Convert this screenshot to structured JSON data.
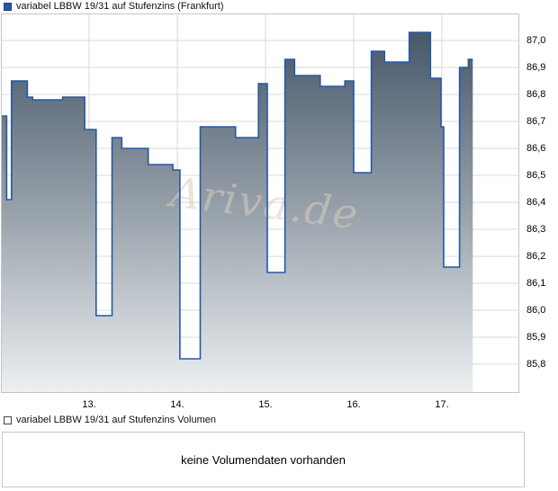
{
  "price_chart": {
    "legend": "variabel LBBW 19/31 auf Stufenzins (Frankfurt)",
    "marker_fill": "#2a55a8",
    "marker_border": "#16407e"
  },
  "volume_chart": {
    "legend": "variabel LBBW 19/31 auf Stufenzins Volumen",
    "marker_fill": "#ffffff",
    "marker_border": "#444444",
    "message": "keine Volumendaten vorhanden"
  },
  "watermark": "Ariva.de",
  "chart_data": {
    "type": "area",
    "step": true,
    "title": "variabel LBBW 19/31 auf Stufenzins (Frankfurt)",
    "xlabel": "",
    "ylabel": "",
    "x_unit": "day of month",
    "x_range_days": [
      12.0,
      17.35
    ],
    "ylim": [
      85.7,
      87.1
    ],
    "grid": true,
    "legend_position": "top-left",
    "y_axis_side": "right",
    "x_ticks": [
      {
        "day": 13,
        "label": "13."
      },
      {
        "day": 14,
        "label": "14."
      },
      {
        "day": 15,
        "label": "15."
      },
      {
        "day": 16,
        "label": "16."
      },
      {
        "day": 17,
        "label": "17."
      }
    ],
    "y_ticks": [
      {
        "value": 87.0,
        "label": "87,0"
      },
      {
        "value": 86.9,
        "label": "86,9"
      },
      {
        "value": 86.8,
        "label": "86,8"
      },
      {
        "value": 86.7,
        "label": "86,7"
      },
      {
        "value": 86.6,
        "label": "86,6"
      },
      {
        "value": 86.5,
        "label": "86,5"
      },
      {
        "value": 86.4,
        "label": "86,4"
      },
      {
        "value": 86.3,
        "label": "86,3"
      },
      {
        "value": 86.2,
        "label": "86,2"
      },
      {
        "value": 86.1,
        "label": "86,1"
      },
      {
        "value": 86.0,
        "label": "86,0"
      },
      {
        "value": 85.9,
        "label": "85,9"
      },
      {
        "value": 85.8,
        "label": "85,8"
      }
    ],
    "series": [
      {
        "name": "variabel LBBW 19/31 auf Stufenzins (Frankfurt)",
        "points": [
          [
            12.0,
            86.72
          ],
          [
            12.065,
            86.41
          ],
          [
            12.12,
            86.85
          ],
          [
            12.3,
            86.79
          ],
          [
            12.36,
            86.78
          ],
          [
            12.7,
            86.79
          ],
          [
            12.95,
            86.67
          ],
          [
            13.08,
            85.98
          ],
          [
            13.26,
            86.64
          ],
          [
            13.37,
            86.6
          ],
          [
            13.67,
            86.54
          ],
          [
            13.95,
            86.52
          ],
          [
            14.03,
            85.82
          ],
          [
            14.26,
            86.68
          ],
          [
            14.66,
            86.64
          ],
          [
            14.92,
            86.84
          ],
          [
            15.02,
            86.14
          ],
          [
            15.22,
            86.93
          ],
          [
            15.33,
            86.87
          ],
          [
            15.62,
            86.83
          ],
          [
            15.9,
            86.85
          ],
          [
            16.0,
            86.51
          ],
          [
            16.2,
            86.96
          ],
          [
            16.35,
            86.92
          ],
          [
            16.63,
            87.03
          ],
          [
            16.87,
            86.86
          ],
          [
            16.99,
            86.68
          ],
          [
            17.02,
            86.16
          ],
          [
            17.2,
            86.9
          ],
          [
            17.3,
            86.93
          ]
        ]
      }
    ],
    "end_day": 17.35,
    "last_price": 86.93,
    "colors": {
      "line": "#2558a6",
      "fill_top": "#47586a",
      "fill_mid": "#98a2ab",
      "fill_bottom": "#eef0f2",
      "grid": "#d8d8d8",
      "frame": "#c4c4c4",
      "watermark": "#d9cec0"
    }
  }
}
